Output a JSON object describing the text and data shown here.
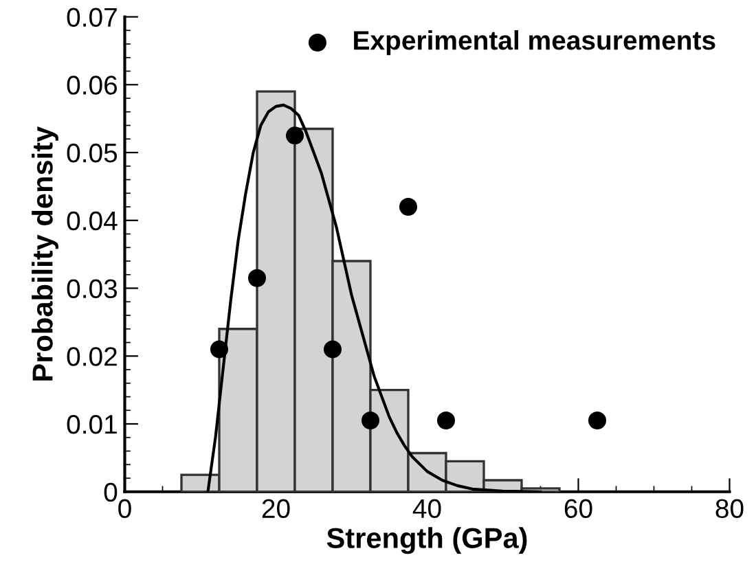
{
  "chart_data": {
    "type": "histogram",
    "xlabel": "Strength (GPa)",
    "ylabel": "Probability density",
    "bins": [
      7.5,
      12.5,
      17.5,
      22.5,
      27.5,
      32.5,
      37.5,
      42.5,
      47.5,
      52.5,
      57.5
    ],
    "values": [
      0.0025,
      0.024,
      0.059,
      0.0535,
      0.034,
      0.015,
      0.0057,
      0.0045,
      0.0017,
      0.0005
    ],
    "color": "#d3d3d3",
    "series": [
      {
        "type": "line",
        "color": "#000000",
        "line_style": "solid",
        "marker": "none",
        "x": [
          11,
          12,
          13,
          14,
          15,
          16,
          17,
          18,
          19,
          20,
          21,
          22,
          23,
          24,
          25,
          26,
          27,
          28,
          29,
          30,
          31,
          32,
          33,
          34,
          35,
          36,
          37,
          38,
          40,
          42,
          44,
          46,
          50,
          55
        ],
        "values": [
          0,
          0.008,
          0.018,
          0.028,
          0.037,
          0.044,
          0.05,
          0.054,
          0.056,
          0.0568,
          0.057,
          0.0565,
          0.0555,
          0.053,
          0.05,
          0.047,
          0.043,
          0.039,
          0.034,
          0.029,
          0.025,
          0.021,
          0.017,
          0.014,
          0.011,
          0.0087,
          0.0068,
          0.0052,
          0.003,
          0.0017,
          0.0009,
          0.0004,
          0.0001,
          0
        ]
      },
      {
        "type": "scatter",
        "name": "Experimental measurements",
        "color": "#000000",
        "marker": "circle",
        "x": [
          12.5,
          17.5,
          22.5,
          27.5,
          32.5,
          37.5,
          42.5,
          62.5
        ],
        "values": [
          0.021,
          0.0315,
          0.0525,
          0.021,
          0.0105,
          0.042,
          0.0105,
          0.0105
        ]
      }
    ],
    "xlim": [
      0,
      80
    ],
    "xticks": [
      0,
      20,
      40,
      60,
      80
    ],
    "ylim": [
      0,
      0.07
    ],
    "yticks": [
      0,
      0.01,
      0.02,
      0.03,
      0.04,
      0.05,
      0.06,
      0.07
    ],
    "grid": false,
    "legend": "top right"
  }
}
